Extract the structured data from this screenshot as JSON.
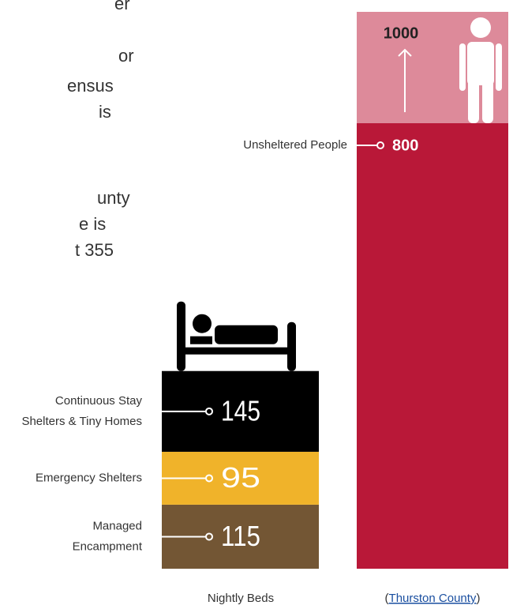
{
  "cropped_text": [
    "er",
    "or",
    "ensus",
    "is",
    "unty",
    "e is",
    "t 355"
  ],
  "chart_data": {
    "type": "stacked-bar",
    "ylim": [
      0,
      1000
    ],
    "beds": {
      "label": "Nightly Beds",
      "segments": [
        {
          "name": [
            "Managed",
            "Encampment"
          ],
          "value": 115,
          "color": "#735634"
        },
        {
          "name": [
            "Emergency Shelters"
          ],
          "value": 95,
          "color": "#f0b32a"
        },
        {
          "name": [
            "Continuous Stay",
            "Shelters & Tiny Homes"
          ],
          "value": 145,
          "color": "#000000"
        }
      ]
    },
    "unsheltered": {
      "name": "Unsheltered People",
      "value": 800,
      "color": "#b91838",
      "upper": 1000,
      "upper_color": "#dd8a9a"
    },
    "source": {
      "open": "(",
      "link": "Thurston County",
      "close": ")"
    }
  }
}
